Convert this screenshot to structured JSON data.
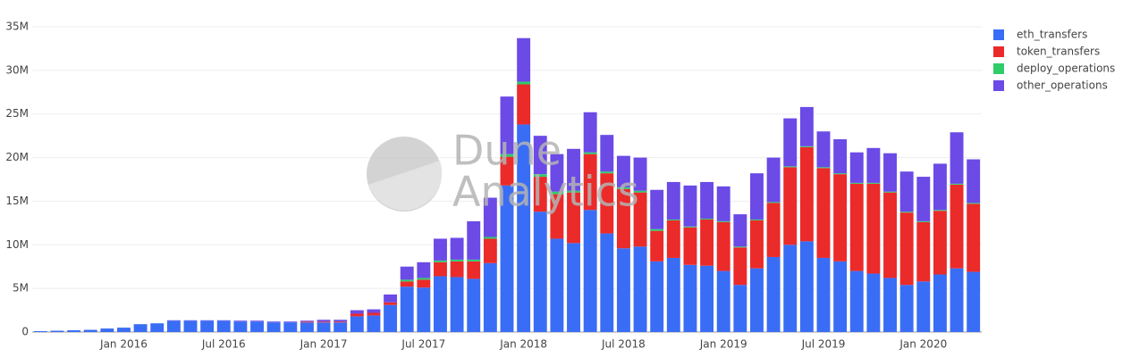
{
  "chart_data": {
    "type": "bar",
    "stacked": true,
    "watermark": [
      "Dune",
      "Analytics"
    ],
    "categories": [
      "2015-08",
      "2015-09",
      "2015-10",
      "2015-11",
      "2015-12",
      "2016-01",
      "2016-02",
      "2016-03",
      "2016-04",
      "2016-05",
      "2016-06",
      "2016-07",
      "2016-08",
      "2016-09",
      "2016-10",
      "2016-11",
      "2016-12",
      "2017-01",
      "2017-02",
      "2017-03",
      "2017-04",
      "2017-05",
      "2017-06",
      "2017-07",
      "2017-08",
      "2017-09",
      "2017-10",
      "2017-11",
      "2017-12",
      "2018-01",
      "2018-02",
      "2018-03",
      "2018-04",
      "2018-05",
      "2018-06",
      "2018-07",
      "2018-08",
      "2018-09",
      "2018-10",
      "2018-11",
      "2018-12",
      "2019-01",
      "2019-02",
      "2019-03",
      "2019-04",
      "2019-05",
      "2019-06",
      "2019-07",
      "2019-08",
      "2019-09",
      "2019-10",
      "2019-11",
      "2019-12",
      "2020-01",
      "2020-02",
      "2020-03",
      "2020-04"
    ],
    "series": [
      {
        "name": "eth_transfers",
        "color": "#3a6df5",
        "values": [
          0.1,
          0.15,
          0.2,
          0.25,
          0.4,
          0.5,
          0.9,
          1.0,
          1.3,
          1.3,
          1.3,
          1.3,
          1.2,
          1.2,
          1.1,
          1.1,
          1.1,
          1.1,
          1.1,
          1.8,
          1.9,
          3.1,
          5.2,
          5.1,
          6.4,
          6.3,
          6.1,
          7.9,
          16.8,
          23.8,
          13.8,
          10.7,
          10.2,
          14.0,
          11.3,
          9.6,
          9.8,
          8.1,
          8.5,
          7.7,
          7.6,
          7.0,
          5.4,
          7.3,
          8.6,
          10.0,
          10.4,
          8.5,
          8.1,
          7.0,
          6.7,
          6.2,
          5.4,
          5.8,
          6.6,
          7.3,
          6.9
        ]
      },
      {
        "name": "token_transfers",
        "color": "#eb2a2a",
        "values": [
          0,
          0,
          0,
          0,
          0,
          0,
          0,
          0,
          0,
          0,
          0,
          0,
          0,
          0,
          0,
          0,
          0.1,
          0.1,
          0.1,
          0.3,
          0.3,
          0.3,
          0.6,
          0.9,
          1.6,
          1.8,
          2.0,
          2.8,
          3.3,
          4.6,
          4.0,
          5.1,
          5.8,
          6.4,
          6.9,
          6.8,
          6.2,
          3.5,
          4.3,
          4.3,
          5.3,
          5.6,
          4.3,
          5.5,
          6.2,
          8.9,
          10.8,
          10.3,
          10.0,
          10.0,
          10.3,
          9.8,
          8.3,
          6.8,
          7.3,
          9.6,
          7.8
        ]
      },
      {
        "name": "deploy_operations",
        "color": "#2fcc6a",
        "values": [
          0,
          0,
          0,
          0,
          0,
          0,
          0,
          0,
          0,
          0,
          0,
          0,
          0,
          0,
          0,
          0,
          0,
          0,
          0,
          0,
          0,
          0,
          0.2,
          0.2,
          0.2,
          0.2,
          0.2,
          0.2,
          0.3,
          0.3,
          0.3,
          0.3,
          0.2,
          0.2,
          0.2,
          0.2,
          0.2,
          0.2,
          0.1,
          0.1,
          0.1,
          0.1,
          0.1,
          0.1,
          0.1,
          0.1,
          0.1,
          0.1,
          0.1,
          0.1,
          0.1,
          0.1,
          0.1,
          0.1,
          0.1,
          0.1,
          0.1
        ]
      },
      {
        "name": "other_operations",
        "color": "#6b4ae6",
        "values": [
          0,
          0,
          0,
          0,
          0,
          0,
          0,
          0,
          0.05,
          0.05,
          0.05,
          0.05,
          0.1,
          0.1,
          0.1,
          0.1,
          0.1,
          0.2,
          0.2,
          0.4,
          0.4,
          0.9,
          1.5,
          1.8,
          2.5,
          2.5,
          4.4,
          4.5,
          6.6,
          5.0,
          4.4,
          4.3,
          4.8,
          4.6,
          4.2,
          3.6,
          3.8,
          4.5,
          4.3,
          4.7,
          4.2,
          4.0,
          3.7,
          5.3,
          5.1,
          5.5,
          4.5,
          4.1,
          3.9,
          3.5,
          4.0,
          4.4,
          4.6,
          5.1,
          5.3,
          5.9,
          5.0
        ]
      }
    ],
    "ylim": [
      0,
      35
    ],
    "yticks": [
      0,
      {
        "value": 5,
        "label": "5M"
      },
      {
        "value": 10,
        "label": "10M"
      },
      {
        "value": 15,
        "label": "15M"
      },
      {
        "value": 20,
        "label": "20M"
      },
      {
        "value": 25,
        "label": "25M"
      },
      {
        "value": 30,
        "label": "30M"
      },
      {
        "value": 35,
        "label": "35M"
      }
    ],
    "xticks": [
      {
        "value": "2016-01",
        "label": "Jan 2016"
      },
      {
        "value": "2016-07",
        "label": "Jul 2016"
      },
      {
        "value": "2017-01",
        "label": "Jan 2017"
      },
      {
        "value": "2017-07",
        "label": "Jul 2017"
      },
      {
        "value": "2018-01",
        "label": "Jan 2018"
      },
      {
        "value": "2018-07",
        "label": "Jul 2018"
      },
      {
        "value": "2019-01",
        "label": "Jan 2019"
      },
      {
        "value": "2019-07",
        "label": "Jul 2019"
      },
      {
        "value": "2020-01",
        "label": "Jan 2020"
      }
    ],
    "grid": true,
    "legend": "right"
  }
}
